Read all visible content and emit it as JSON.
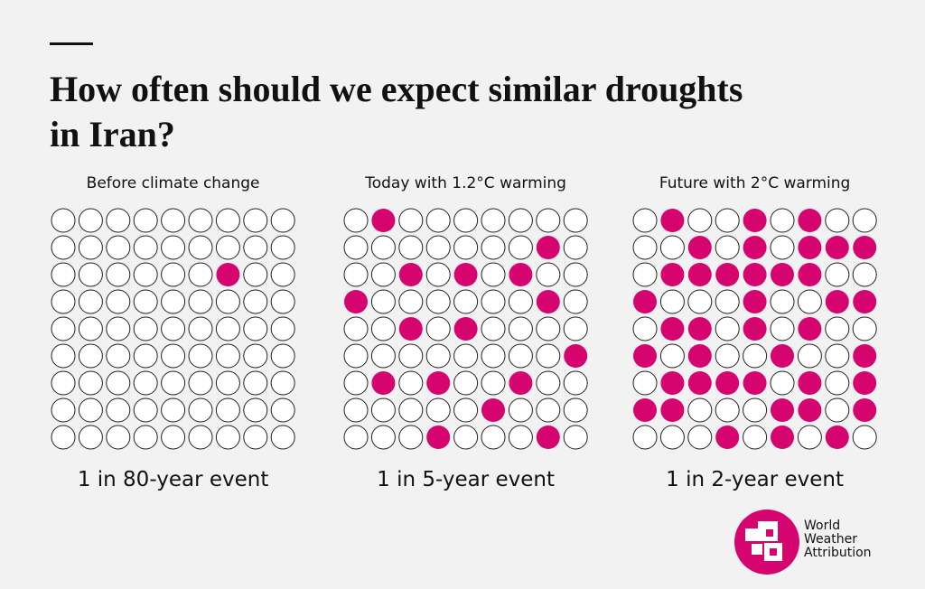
{
  "chart_data": {
    "type": "waffle",
    "title_lines": [
      "How often should we expect similar droughts",
      "in Iran?"
    ],
    "filled_color": "#d6046e",
    "panels": [
      {
        "title": "Before climate change",
        "caption": "1 in 80-year event",
        "rows": [
          [
            0,
            0,
            0,
            0,
            0,
            0,
            0,
            0,
            0
          ],
          [
            0,
            0,
            0,
            0,
            0,
            0,
            0,
            0,
            0
          ],
          [
            0,
            0,
            0,
            0,
            0,
            0,
            1,
            0,
            0
          ],
          [
            0,
            0,
            0,
            0,
            0,
            0,
            0,
            0,
            0
          ],
          [
            0,
            0,
            0,
            0,
            0,
            0,
            0,
            0,
            0
          ],
          [
            0,
            0,
            0,
            0,
            0,
            0,
            0,
            0,
            0
          ],
          [
            0,
            0,
            0,
            0,
            0,
            0,
            0,
            0,
            0
          ],
          [
            0,
            0,
            0,
            0,
            0,
            0,
            0,
            0,
            0
          ],
          [
            0,
            0,
            0,
            0,
            0,
            0,
            0,
            0,
            0
          ]
        ]
      },
      {
        "title": "Today with 1.2°C warming",
        "caption": "1 in 5-year event",
        "rows": [
          [
            0,
            1,
            0,
            0,
            0,
            0,
            0,
            0,
            0
          ],
          [
            0,
            0,
            0,
            0,
            0,
            0,
            0,
            1,
            0
          ],
          [
            0,
            0,
            1,
            0,
            1,
            0,
            1,
            0,
            0
          ],
          [
            1,
            0,
            0,
            0,
            0,
            0,
            0,
            1,
            0
          ],
          [
            0,
            0,
            1,
            0,
            1,
            0,
            0,
            0,
            0
          ],
          [
            0,
            0,
            0,
            0,
            0,
            0,
            0,
            0,
            1
          ],
          [
            0,
            1,
            0,
            1,
            0,
            0,
            1,
            0,
            0
          ],
          [
            0,
            0,
            0,
            0,
            0,
            1,
            0,
            0,
            0
          ],
          [
            0,
            0,
            0,
            1,
            0,
            0,
            0,
            1,
            0
          ]
        ]
      },
      {
        "title": "Future with 2°C warming",
        "caption": "1 in 2-year event",
        "rows": [
          [
            0,
            1,
            0,
            0,
            1,
            0,
            1,
            0,
            0
          ],
          [
            0,
            0,
            1,
            0,
            1,
            0,
            1,
            1,
            1
          ],
          [
            0,
            1,
            1,
            1,
            1,
            1,
            1,
            0,
            0
          ],
          [
            1,
            0,
            0,
            0,
            1,
            0,
            0,
            1,
            1
          ],
          [
            0,
            1,
            1,
            0,
            1,
            0,
            1,
            0,
            0
          ],
          [
            1,
            0,
            1,
            0,
            0,
            1,
            0,
            0,
            1
          ],
          [
            0,
            1,
            1,
            1,
            1,
            0,
            1,
            0,
            1
          ],
          [
            1,
            1,
            0,
            0,
            0,
            1,
            1,
            0,
            1
          ],
          [
            0,
            0,
            0,
            1,
            0,
            1,
            0,
            1,
            0
          ]
        ]
      }
    ]
  },
  "logo": {
    "lines": [
      "World",
      "Weather",
      "Attribution"
    ]
  }
}
